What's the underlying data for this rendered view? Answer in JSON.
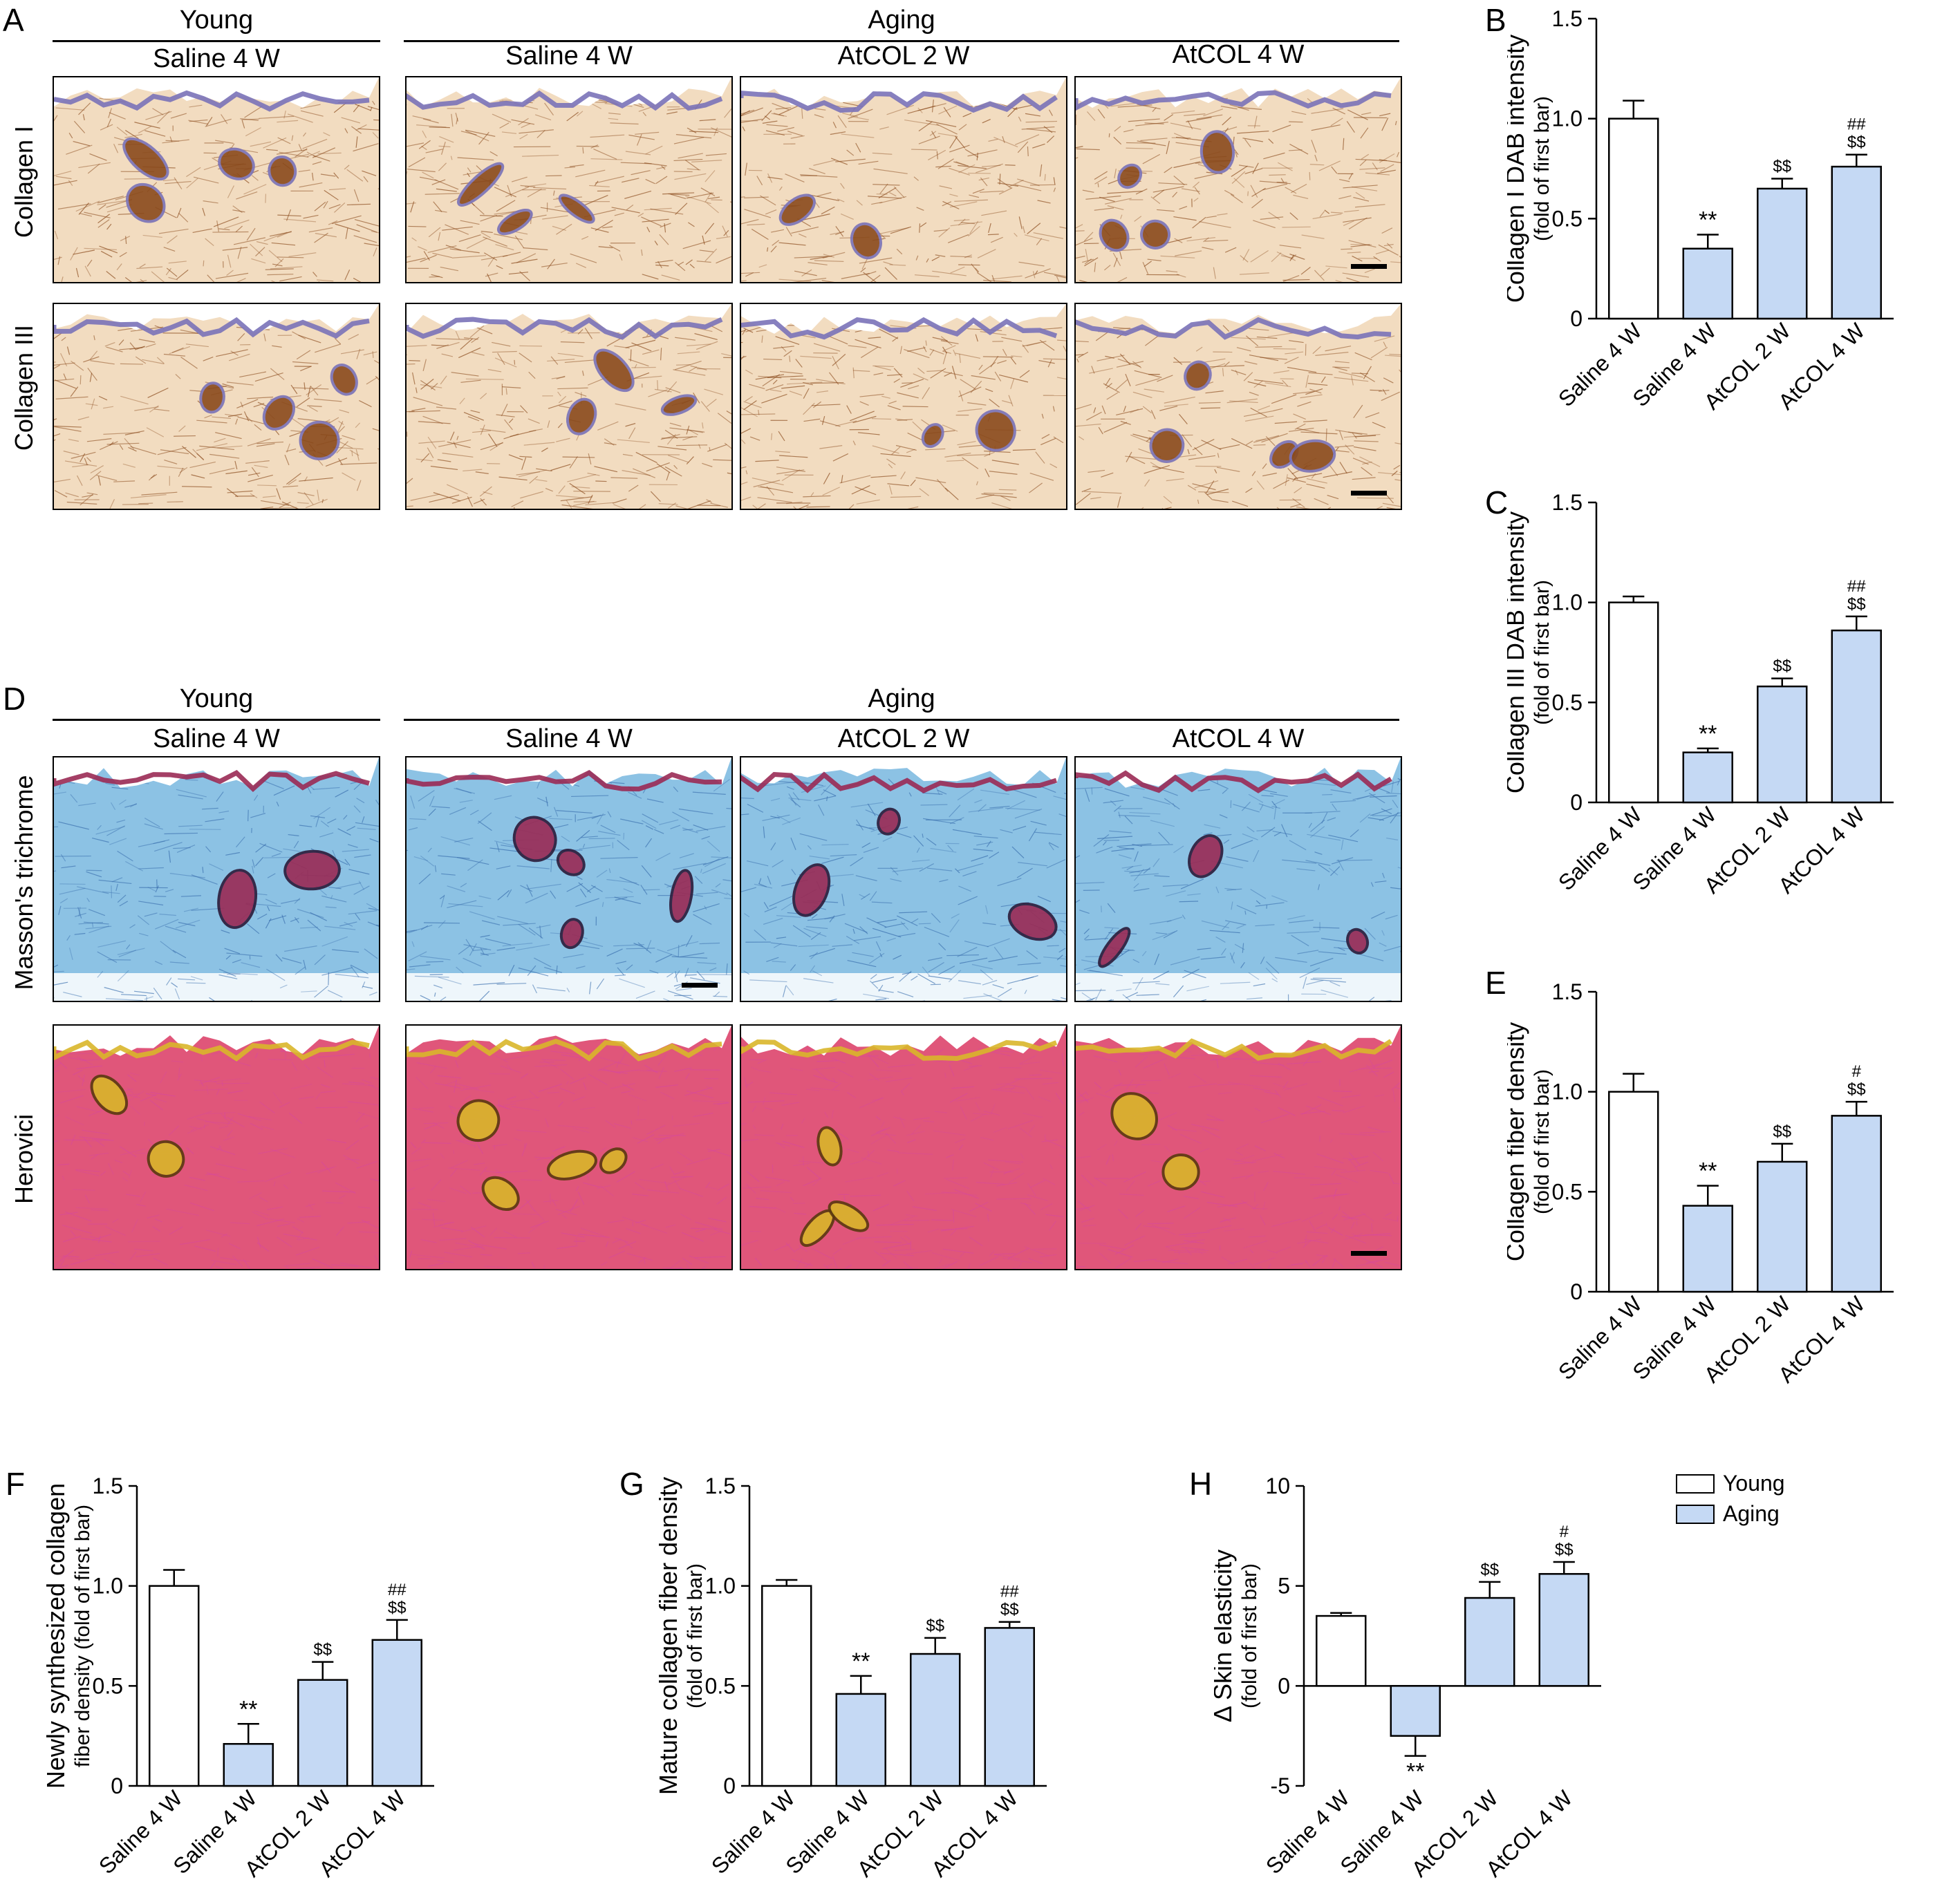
{
  "colors": {
    "young_fill": "#ffffff",
    "aging_fill": "#c5d9f4",
    "dab_bg": "#f2dcc0",
    "dab_dark": "#8a4a1c",
    "hema": "#7a72b8",
    "masson_bg": "#8cc2e4",
    "masson_dark": "#3a6fae",
    "masson_red": "#9a2a54",
    "herovici_bg": "#e0567a",
    "herovici_pink": "#d84a9a",
    "herovici_yellow": "#d9b62a"
  },
  "panel_letters": {
    "A": "A",
    "B": "B",
    "C": "C",
    "D": "D",
    "E": "E",
    "F": "F",
    "G": "G",
    "H": "H"
  },
  "panel_a": {
    "group_young": "Young",
    "group_aging": "Aging",
    "columns": [
      "Saline 4 W",
      "Saline 4 W",
      "AtCOL 2 W",
      "AtCOL 4 W"
    ],
    "rows": [
      "Collagen I",
      "Collagen III"
    ]
  },
  "panel_d": {
    "group_young": "Young",
    "group_aging": "Aging",
    "columns": [
      "Saline 4 W",
      "Saline 4 W",
      "AtCOL 2 W",
      "AtCOL 4 W"
    ],
    "rows": [
      "Masson's trichrome",
      "Herovici"
    ]
  },
  "legend": {
    "young": "Young",
    "aging": "Aging"
  },
  "chart_data": [
    {
      "id": "B",
      "type": "bar",
      "ylabel_lines": [
        "Collagen I DAB intensity",
        "(fold of first bar)"
      ],
      "categories": [
        "Saline 4 W",
        "Saline 4 W",
        "AtCOL 2 W",
        "AtCOL 4 W"
      ],
      "groups": [
        "Young",
        "Aging",
        "Aging",
        "Aging"
      ],
      "values": [
        1.0,
        0.35,
        0.65,
        0.76
      ],
      "errors": [
        0.09,
        0.07,
        0.05,
        0.06
      ],
      "annotations": [
        [],
        [
          "**"
        ],
        [
          "$$"
        ],
        [
          "##",
          "$$"
        ]
      ],
      "ylim": [
        0,
        1.5
      ],
      "yticks": [
        0,
        0.5,
        1.0,
        1.5
      ],
      "ytick_labels": [
        "0",
        "0.5",
        "1.0",
        "1.5"
      ]
    },
    {
      "id": "C",
      "type": "bar",
      "ylabel_lines": [
        "Collagen III DAB intensity",
        "(fold of first bar)"
      ],
      "categories": [
        "Saline 4 W",
        "Saline 4 W",
        "AtCOL 2 W",
        "AtCOL 4 W"
      ],
      "groups": [
        "Young",
        "Aging",
        "Aging",
        "Aging"
      ],
      "values": [
        1.0,
        0.25,
        0.58,
        0.86
      ],
      "errors": [
        0.03,
        0.02,
        0.04,
        0.07
      ],
      "annotations": [
        [],
        [
          "**"
        ],
        [
          "$$"
        ],
        [
          "##",
          "$$"
        ]
      ],
      "ylim": [
        0,
        1.5
      ],
      "yticks": [
        0,
        0.5,
        1.0,
        1.5
      ],
      "ytick_labels": [
        "0",
        "0.5",
        "1.0",
        "1.5"
      ]
    },
    {
      "id": "E",
      "type": "bar",
      "ylabel_lines": [
        "Collagen fiber density",
        "(fold of first bar)"
      ],
      "categories": [
        "Saline 4 W",
        "Saline 4 W",
        "AtCOL 2 W",
        "AtCOL 4 W"
      ],
      "groups": [
        "Young",
        "Aging",
        "Aging",
        "Aging"
      ],
      "values": [
        1.0,
        0.43,
        0.65,
        0.88
      ],
      "errors": [
        0.09,
        0.1,
        0.09,
        0.07
      ],
      "annotations": [
        [],
        [
          "**"
        ],
        [
          "$$"
        ],
        [
          "#",
          "$$"
        ]
      ],
      "ylim": [
        0,
        1.5
      ],
      "yticks": [
        0,
        0.5,
        1.0,
        1.5
      ],
      "ytick_labels": [
        "0",
        "0.5",
        "1.0",
        "1.5"
      ]
    },
    {
      "id": "F",
      "type": "bar",
      "ylabel_lines": [
        "Newly synthesized collagen",
        "fiber density (fold of first bar)"
      ],
      "categories": [
        "Saline 4 W",
        "Saline 4 W",
        "AtCOL 2 W",
        "AtCOL 4 W"
      ],
      "groups": [
        "Young",
        "Aging",
        "Aging",
        "Aging"
      ],
      "values": [
        1.0,
        0.21,
        0.53,
        0.73
      ],
      "errors": [
        0.08,
        0.1,
        0.09,
        0.1
      ],
      "annotations": [
        [],
        [
          "**"
        ],
        [
          "$$"
        ],
        [
          "##",
          "$$"
        ]
      ],
      "ylim": [
        0,
        1.5
      ],
      "yticks": [
        0,
        0.5,
        1.0,
        1.5
      ],
      "ytick_labels": [
        "0",
        "0.5",
        "1.0",
        "1.5"
      ]
    },
    {
      "id": "G",
      "type": "bar",
      "ylabel_lines": [
        "Mature collagen fiber density",
        "(fold of first bar)"
      ],
      "categories": [
        "Saline 4 W",
        "Saline 4 W",
        "AtCOL 2 W",
        "AtCOL 4 W"
      ],
      "groups": [
        "Young",
        "Aging",
        "Aging",
        "Aging"
      ],
      "values": [
        1.0,
        0.46,
        0.66,
        0.79
      ],
      "errors": [
        0.03,
        0.09,
        0.08,
        0.03
      ],
      "annotations": [
        [],
        [
          "**"
        ],
        [
          "$$"
        ],
        [
          "##",
          "$$"
        ]
      ],
      "ylim": [
        0,
        1.5
      ],
      "yticks": [
        0,
        0.5,
        1.0,
        1.5
      ],
      "ytick_labels": [
        "0",
        "0.5",
        "1.0",
        "1.5"
      ]
    },
    {
      "id": "H",
      "type": "bar",
      "ylabel_lines": [
        "Δ Skin elasticity",
        "(fold of first bar)"
      ],
      "categories": [
        "Saline 4 W",
        "Saline 4 W",
        "AtCOL 2 W",
        "AtCOL 4 W"
      ],
      "groups": [
        "Young",
        "Aging",
        "Aging",
        "Aging"
      ],
      "values": [
        3.5,
        -2.5,
        4.4,
        5.6
      ],
      "errors": [
        0.15,
        1.0,
        0.8,
        0.6
      ],
      "annotations": [
        [],
        [
          "**"
        ],
        [
          "$$"
        ],
        [
          "#",
          "$$"
        ]
      ],
      "ylim": [
        -5,
        10
      ],
      "yticks": [
        -5,
        0,
        5,
        10
      ],
      "ytick_labels": [
        "-5",
        "0",
        "5",
        "10"
      ]
    }
  ]
}
